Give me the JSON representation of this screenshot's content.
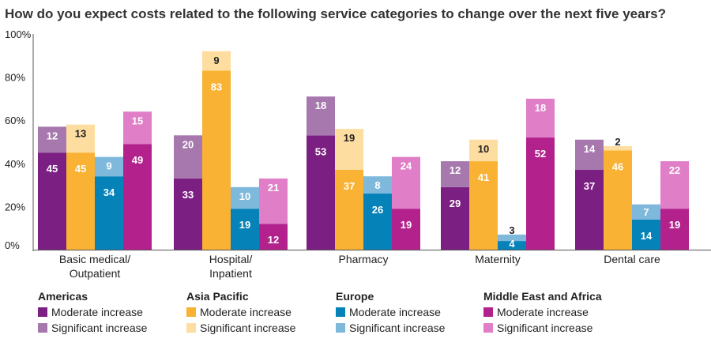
{
  "chart_data": {
    "type": "bar",
    "stacked": true,
    "title": "How do you expect costs related to the following service categories to change over the next five years?",
    "ylim": [
      0,
      100
    ],
    "yticks": [
      "0%",
      "20%",
      "40%",
      "60%",
      "80%",
      "100%"
    ],
    "categories": [
      [
        "Basic medical/",
        "Outpatient"
      ],
      [
        "Hospital/",
        "Inpatient"
      ],
      [
        "Pharmacy"
      ],
      [
        "Maternity"
      ],
      [
        "Dental care"
      ]
    ],
    "regions": [
      {
        "name": "Americas",
        "moderate": [
          45,
          33,
          53,
          29,
          37
        ],
        "significant": [
          12,
          20,
          18,
          12,
          14
        ],
        "colors": {
          "moderate": "#7b1f82",
          "significant": "#a678ad"
        }
      },
      {
        "name": "Asia Pacific",
        "moderate": [
          45,
          83,
          37,
          41,
          46
        ],
        "significant": [
          13,
          9,
          19,
          10,
          2
        ],
        "colors": {
          "moderate": "#f9b233",
          "significant": "#fedda0"
        }
      },
      {
        "name": "Europe",
        "moderate": [
          34,
          19,
          26,
          4,
          14
        ],
        "significant": [
          9,
          10,
          8,
          3,
          7
        ],
        "colors": {
          "moderate": "#0582b8",
          "significant": "#7eb9dc"
        }
      },
      {
        "name": "Middle East and Africa",
        "moderate": [
          49,
          12,
          19,
          52,
          19
        ],
        "significant": [
          15,
          21,
          24,
          18,
          22
        ],
        "colors": {
          "moderate": "#b3228c",
          "significant": "#e07ec8"
        }
      }
    ],
    "series_labels": {
      "moderate": "Moderate increase",
      "significant": "Significant increase"
    },
    "label_colors": {
      "light": "#ffffff",
      "dark": "#222222"
    }
  }
}
